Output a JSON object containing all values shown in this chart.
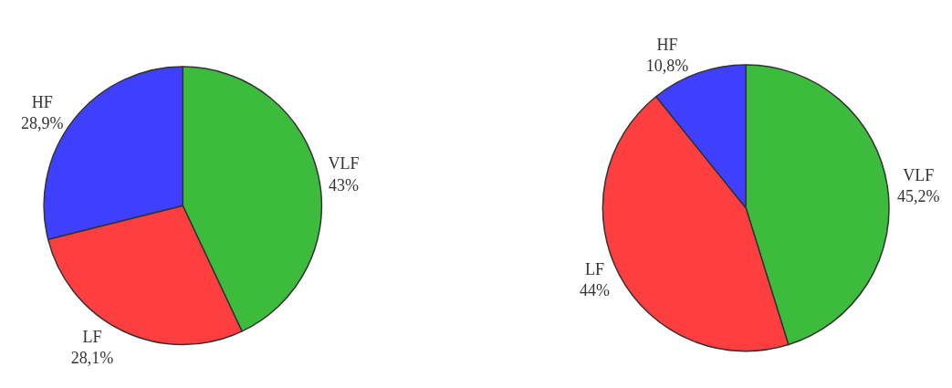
{
  "chart_data": [
    {
      "type": "pie",
      "categories": [
        "VLF",
        "LF",
        "HF"
      ],
      "values": [
        43,
        28.1,
        28.9
      ],
      "value_labels": [
        "43%",
        "28,1%",
        "28,9%"
      ],
      "colors": [
        "#3dbb3d",
        "#ff3f3f",
        "#3f3fff"
      ]
    },
    {
      "type": "pie",
      "categories": [
        "VLF",
        "LF",
        "HF"
      ],
      "values": [
        45.2,
        44,
        10.8
      ],
      "value_labels": [
        "45,2%",
        "44%",
        "10,8%"
      ],
      "colors": [
        "#3dbb3d",
        "#ff3f3f",
        "#3f3fff"
      ]
    }
  ]
}
